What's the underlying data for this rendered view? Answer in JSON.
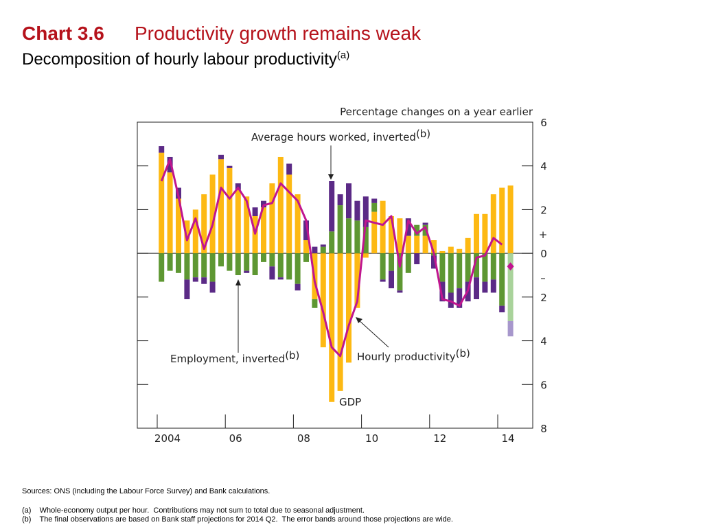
{
  "chart_data": {
    "type": "stacked-bar-line",
    "title_label": "Chart 3.6",
    "title": "Productivity growth remains weak",
    "subtitle": "Decomposition of hourly labour productivity",
    "subtitle_note": "(a)",
    "y_axis_label": "Percentage changes on a year earlier",
    "plus_sign": "+",
    "minus_sign": "–",
    "categories": [
      "2004",
      null,
      null,
      null,
      null,
      null,
      null,
      null,
      "06",
      null,
      null,
      null,
      null,
      null,
      null,
      null,
      "08",
      null,
      null,
      null,
      null,
      null,
      null,
      null,
      "10",
      null,
      null,
      null,
      null,
      null,
      null,
      null,
      "12",
      null,
      null,
      null,
      null,
      null,
      null,
      null,
      "14",
      null
    ],
    "ylim": [
      -8,
      6
    ],
    "yticks": [
      6,
      4,
      2,
      0,
      {
        "value": -2,
        "label": "2"
      },
      {
        "value": -4,
        "label": "4"
      },
      {
        "value": -6,
        "label": "6"
      },
      {
        "value": -8,
        "label": "8"
      }
    ],
    "series": [
      {
        "name": "GDP",
        "color": "#fdb913",
        "values": [
          4.6,
          3.7,
          2.5,
          1.5,
          2.0,
          2.7,
          3.6,
          4.3,
          3.9,
          2.9,
          2.6,
          1.7,
          2.1,
          3.2,
          4.4,
          3.6,
          2.7,
          0.6,
          -2.1,
          -4.3,
          -6.8,
          -6.3,
          -5.0,
          -2.5,
          -0.2,
          1.9,
          2.4,
          1.7,
          1.6,
          0.8,
          0.8,
          0.8,
          0.6,
          0.1,
          0.3,
          0.2,
          0.7,
          1.8,
          1.8,
          2.7,
          3.0,
          3.1
        ]
      },
      {
        "name": "Employment, inverted",
        "note": "(b)",
        "color": "#5e9732",
        "projection_color": "#a9d39b",
        "values": [
          -1.3,
          -0.8,
          -0.9,
          -1.2,
          -1.1,
          -1.1,
          -1.3,
          -0.6,
          -0.8,
          -1.0,
          -0.8,
          -1.0,
          -0.4,
          -0.6,
          -1.1,
          -1.2,
          -1.4,
          -0.4,
          -0.4,
          0.3,
          1.0,
          2.2,
          1.6,
          1.5,
          1.2,
          0.4,
          -1.2,
          -0.8,
          -1.7,
          -0.9,
          0.5,
          0.5,
          -0.1,
          -1.3,
          -1.8,
          -1.6,
          -1.3,
          -1.1,
          -1.3,
          -1.2,
          -2.4,
          -3.1
        ]
      },
      {
        "name": "Average hours worked, inverted",
        "note": "(b)",
        "color": "#5b2a86",
        "projection_color": "#a797cc",
        "values": [
          0.3,
          0.7,
          0.5,
          -0.9,
          -0.2,
          -0.3,
          -0.5,
          0.2,
          0.1,
          0.3,
          -0.1,
          0.4,
          0.3,
          -0.6,
          -0.1,
          0.5,
          -0.3,
          0.9,
          0.3,
          0.1,
          2.3,
          0.5,
          1.6,
          0.9,
          1.4,
          0.2,
          -0.1,
          -0.8,
          -0.1,
          0.8,
          -0.5,
          0.1,
          -0.6,
          -0.9,
          -0.7,
          -0.9,
          -0.9,
          -1.0,
          -0.5,
          -0.6,
          -0.3,
          -0.7
        ]
      },
      {
        "name": "Hourly productivity",
        "note": "(b)",
        "kind": "line",
        "color": "#c0158f",
        "values": [
          3.3,
          4.3,
          2.6,
          0.6,
          1.6,
          0.2,
          1.3,
          3.0,
          2.5,
          3.0,
          2.4,
          0.9,
          2.2,
          2.3,
          3.2,
          2.8,
          2.4,
          1.5,
          -1.3,
          -2.7,
          -4.3,
          -4.7,
          -3.3,
          -2.2,
          1.5,
          1.4,
          1.3,
          1.7,
          -0.6,
          1.5,
          0.9,
          1.2,
          0.0,
          -2.1,
          -2.2,
          -2.4,
          -1.7,
          -0.2,
          -0.1,
          0.7,
          0.4,
          null
        ]
      },
      {
        "kind": "marker",
        "color": "#c0158f",
        "values": [
          null,
          null,
          null,
          null,
          null,
          null,
          null,
          null,
          null,
          null,
          null,
          null,
          null,
          null,
          null,
          null,
          null,
          null,
          null,
          null,
          null,
          null,
          null,
          null,
          null,
          null,
          null,
          null,
          null,
          null,
          null,
          null,
          null,
          null,
          null,
          null,
          null,
          null,
          null,
          null,
          null,
          -0.6
        ]
      }
    ],
    "gdp_label": "GDP",
    "sources": "Sources:  ONS (including the Labour Force Survey) and Bank calculations.",
    "footnotes": [
      "(a)    Whole-economy output per hour.  Contributions may not sum to total due to seasonal adjustment.",
      "(b)    The final observations are based on Bank staff projections for 2014 Q2.  The error bands around those projections are wide."
    ]
  }
}
